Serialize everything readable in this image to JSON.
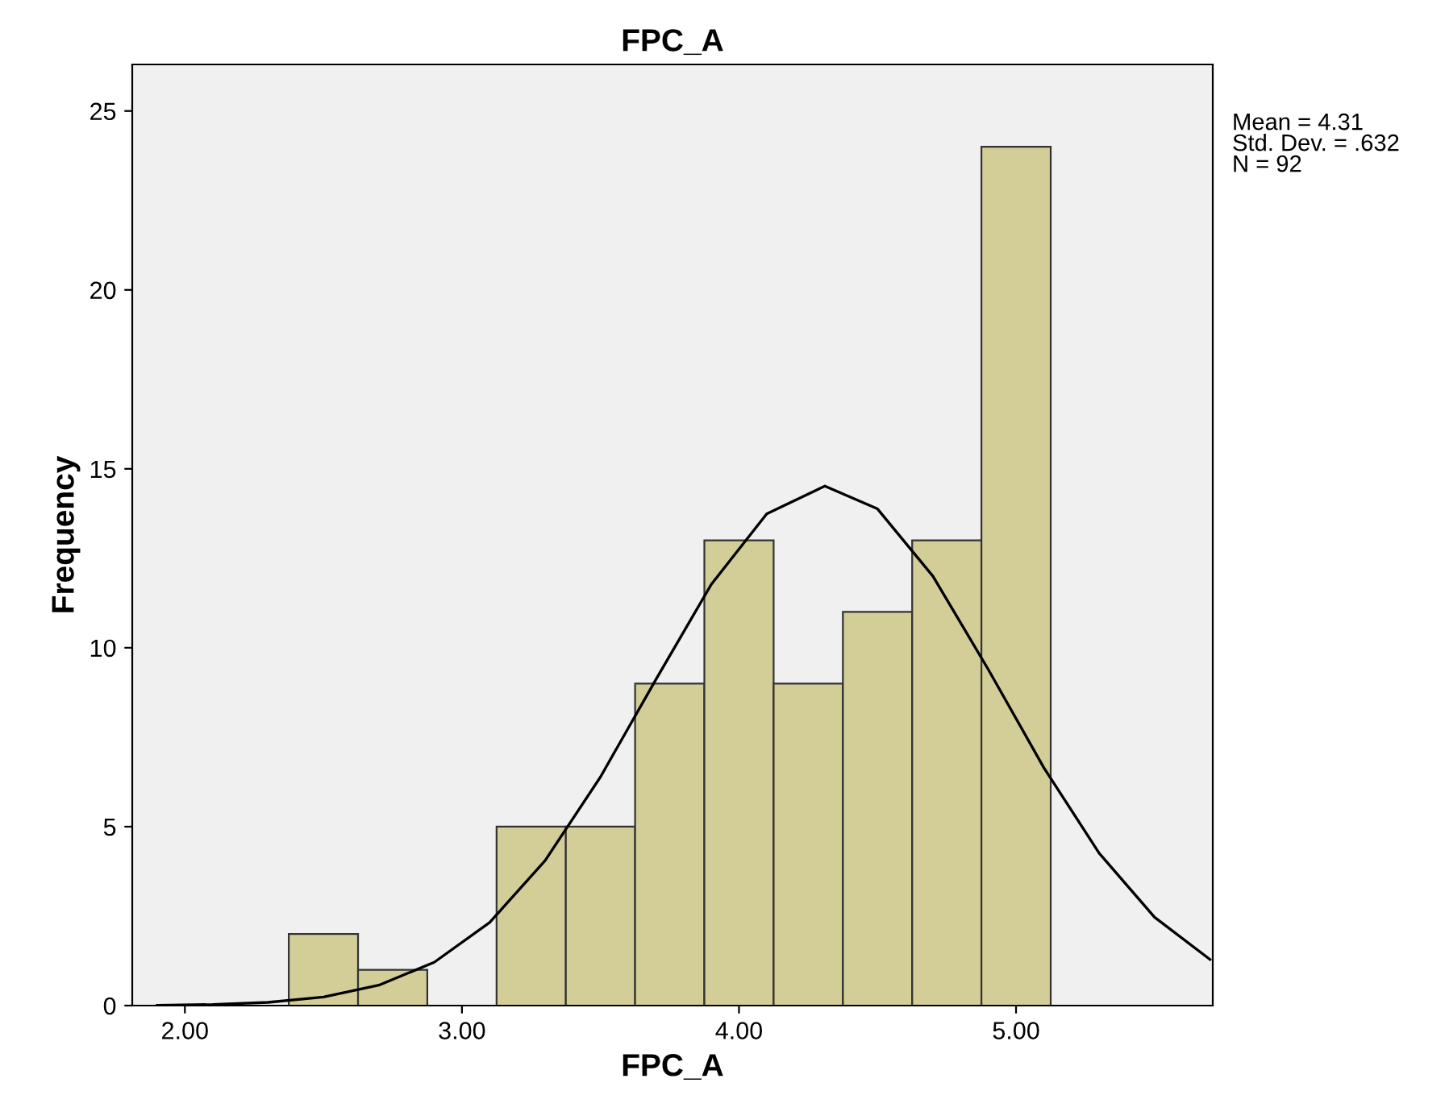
{
  "chart_data": {
    "type": "histogram",
    "title": "FPC_A",
    "xlabel": "FPC_A",
    "ylabel": "Frequency",
    "bins": [
      2.375,
      2.625,
      2.875,
      3.125,
      3.375,
      3.625,
      3.875,
      4.125,
      4.375,
      4.625,
      4.875,
      5.125
    ],
    "values": [
      2,
      1,
      0,
      5,
      5,
      9,
      13,
      9,
      11,
      13,
      24
    ],
    "color": "#d3ce98",
    "series": [
      {
        "type": "line",
        "color": "#000000",
        "x": [
          1.9,
          2.1,
          2.3,
          2.5,
          2.7,
          2.9,
          3.1,
          3.3,
          3.5,
          3.7,
          3.9,
          4.1,
          4.31,
          4.5,
          4.7,
          4.9,
          5.1,
          5.3,
          5.5,
          5.7
        ],
        "values": [
          0.01,
          0.03,
          0.09,
          0.24,
          0.57,
          1.21,
          2.32,
          4.05,
          6.39,
          9.11,
          11.77,
          13.74,
          14.52,
          13.88,
          12.0,
          9.39,
          6.65,
          4.26,
          2.47,
          1.29
        ]
      }
    ],
    "xlim": [
      1.81,
      5.71
    ],
    "ylim": [
      0,
      26.3
    ],
    "xticks": [
      {
        "value": 2,
        "label": "2.00"
      },
      {
        "value": 3,
        "label": "3.00"
      },
      {
        "value": 4,
        "label": "4.00"
      },
      {
        "value": 5,
        "label": "5.00"
      }
    ],
    "yticks": [
      0,
      5,
      10,
      15,
      20,
      25
    ],
    "grid": false,
    "legend": false,
    "annotations": [
      "Mean = 4.31",
      "Std. Dev. = .632",
      "N = 92"
    ]
  }
}
